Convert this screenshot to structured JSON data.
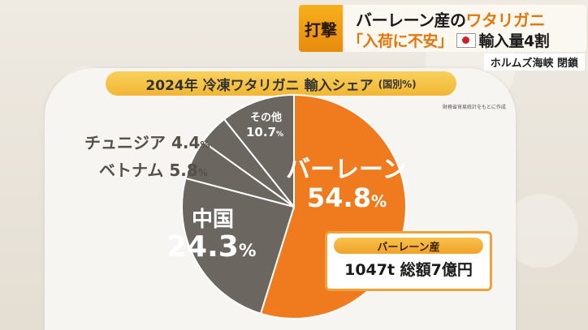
{
  "headline": {
    "tag": "打撃",
    "line1_prefix": "バーレーン産の",
    "line1_accent": "ワタリガニ",
    "line2_accent": "「入荷に不安」",
    "line2_suffix": "輸入量4割",
    "subtag": "ホルムズ海峡 閉鎖"
  },
  "source_note": "財務省貿易統計をもとに作成",
  "colors": {
    "bahrain": "#f07a1e",
    "others": "#6b6760",
    "accent": "#e2770c"
  },
  "chart_data": {
    "type": "pie",
    "title": "2024年 冷凍ワタリガニ 輸入シェア",
    "title_unit": "(国別%)",
    "slices": [
      {
        "name": "バーレーン",
        "value": 54.8
      },
      {
        "name": "中国",
        "value": 24.3
      },
      {
        "name": "ベトナム",
        "value": 5.8
      },
      {
        "name": "チュニジア",
        "value": 4.4
      },
      {
        "name": "その他",
        "value": 10.7
      }
    ],
    "labels": {
      "bahrain_name": "バーレーン",
      "bahrain_value": "54.8",
      "china_name": "中国",
      "china_value": "24.3",
      "vietnam_name": "ベトナム",
      "vietnam_value": "5.8",
      "tunisia_name": "チュニジア",
      "tunisia_value": "4.4",
      "other_name": "その他",
      "other_value": "10.7",
      "percent_sign": "%"
    }
  },
  "info_box": {
    "title": "バーレーン産",
    "value": "1047t 総額7億円"
  }
}
